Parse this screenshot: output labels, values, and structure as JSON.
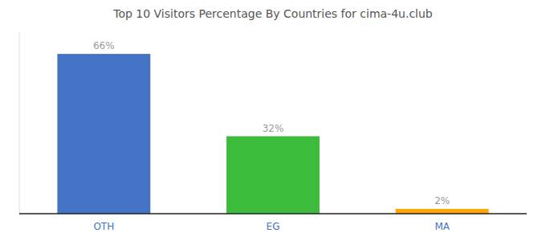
{
  "chart_data": {
    "type": "bar",
    "title": "Top 10 Visitors Percentage By Countries for cima-4u.club",
    "categories": [
      "OTH",
      "EG",
      "MA"
    ],
    "values": [
      66,
      32,
      2
    ],
    "value_labels": [
      "66%",
      "32%",
      "2%"
    ],
    "colors": [
      "#4472c4",
      "#3dbb3d",
      "#ffa500"
    ],
    "ylim": [
      0,
      75
    ],
    "grid": false,
    "data_labels": true,
    "tick_labels": "x"
  }
}
